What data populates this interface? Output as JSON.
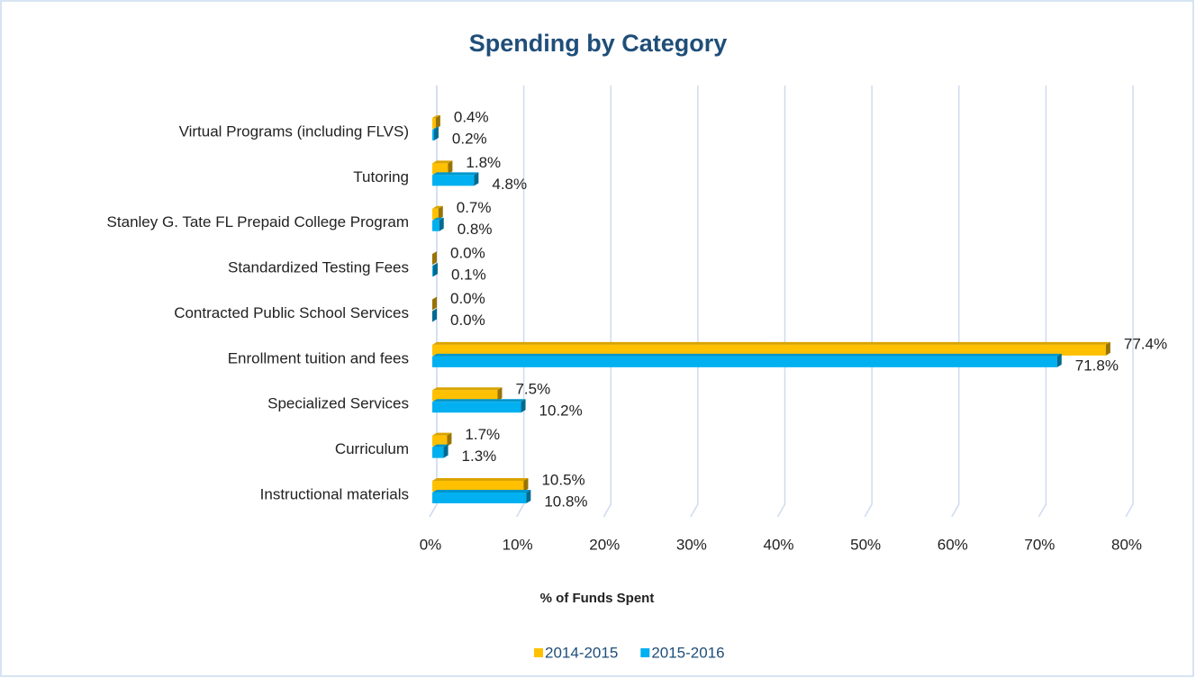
{
  "chart_data": {
    "type": "bar",
    "orientation": "horizontal",
    "title": "Spending by Category",
    "x_label": "% of Funds Spent",
    "categories": [
      "Virtual Programs (including FLVS)",
      "Tutoring",
      "Stanley G. Tate FL Prepaid College Program",
      "Standardized Testing Fees",
      "Contracted Public School Services",
      "Enrollment tuition and fees",
      "Specialized Services",
      "Curriculum",
      "Instructional materials"
    ],
    "series": [
      {
        "name": "2014-2015",
        "color": "#ffc000",
        "values": [
          0.4,
          1.8,
          0.7,
          0.0,
          0.0,
          77.4,
          7.5,
          1.7,
          10.5
        ],
        "value_labels": [
          "0.4%",
          "1.8%",
          "0.7%",
          "0.0%",
          "0.0%",
          "77.4%",
          "7.5%",
          "1.7%",
          "10.5%"
        ]
      },
      {
        "name": "2015-2016",
        "color": "#00b0f0",
        "values": [
          0.2,
          4.8,
          0.8,
          0.1,
          0.0,
          71.8,
          10.2,
          1.3,
          10.8
        ],
        "value_labels": [
          "0.2%",
          "4.8%",
          "0.8%",
          "0.1%",
          "0.0%",
          "71.8%",
          "10.2%",
          "1.3%",
          "10.8%"
        ]
      }
    ],
    "xlim": [
      0,
      80
    ],
    "xticks": [
      {
        "value": 0,
        "label": "0%"
      },
      {
        "value": 10,
        "label": "10%"
      },
      {
        "value": 20,
        "label": "20%"
      },
      {
        "value": 30,
        "label": "30%"
      },
      {
        "value": 40,
        "label": "40%"
      },
      {
        "value": 50,
        "label": "50%"
      },
      {
        "value": 60,
        "label": "60%"
      },
      {
        "value": 70,
        "label": "70%"
      },
      {
        "value": 80,
        "label": "80%"
      }
    ],
    "grid": true,
    "legend": "bottom"
  }
}
